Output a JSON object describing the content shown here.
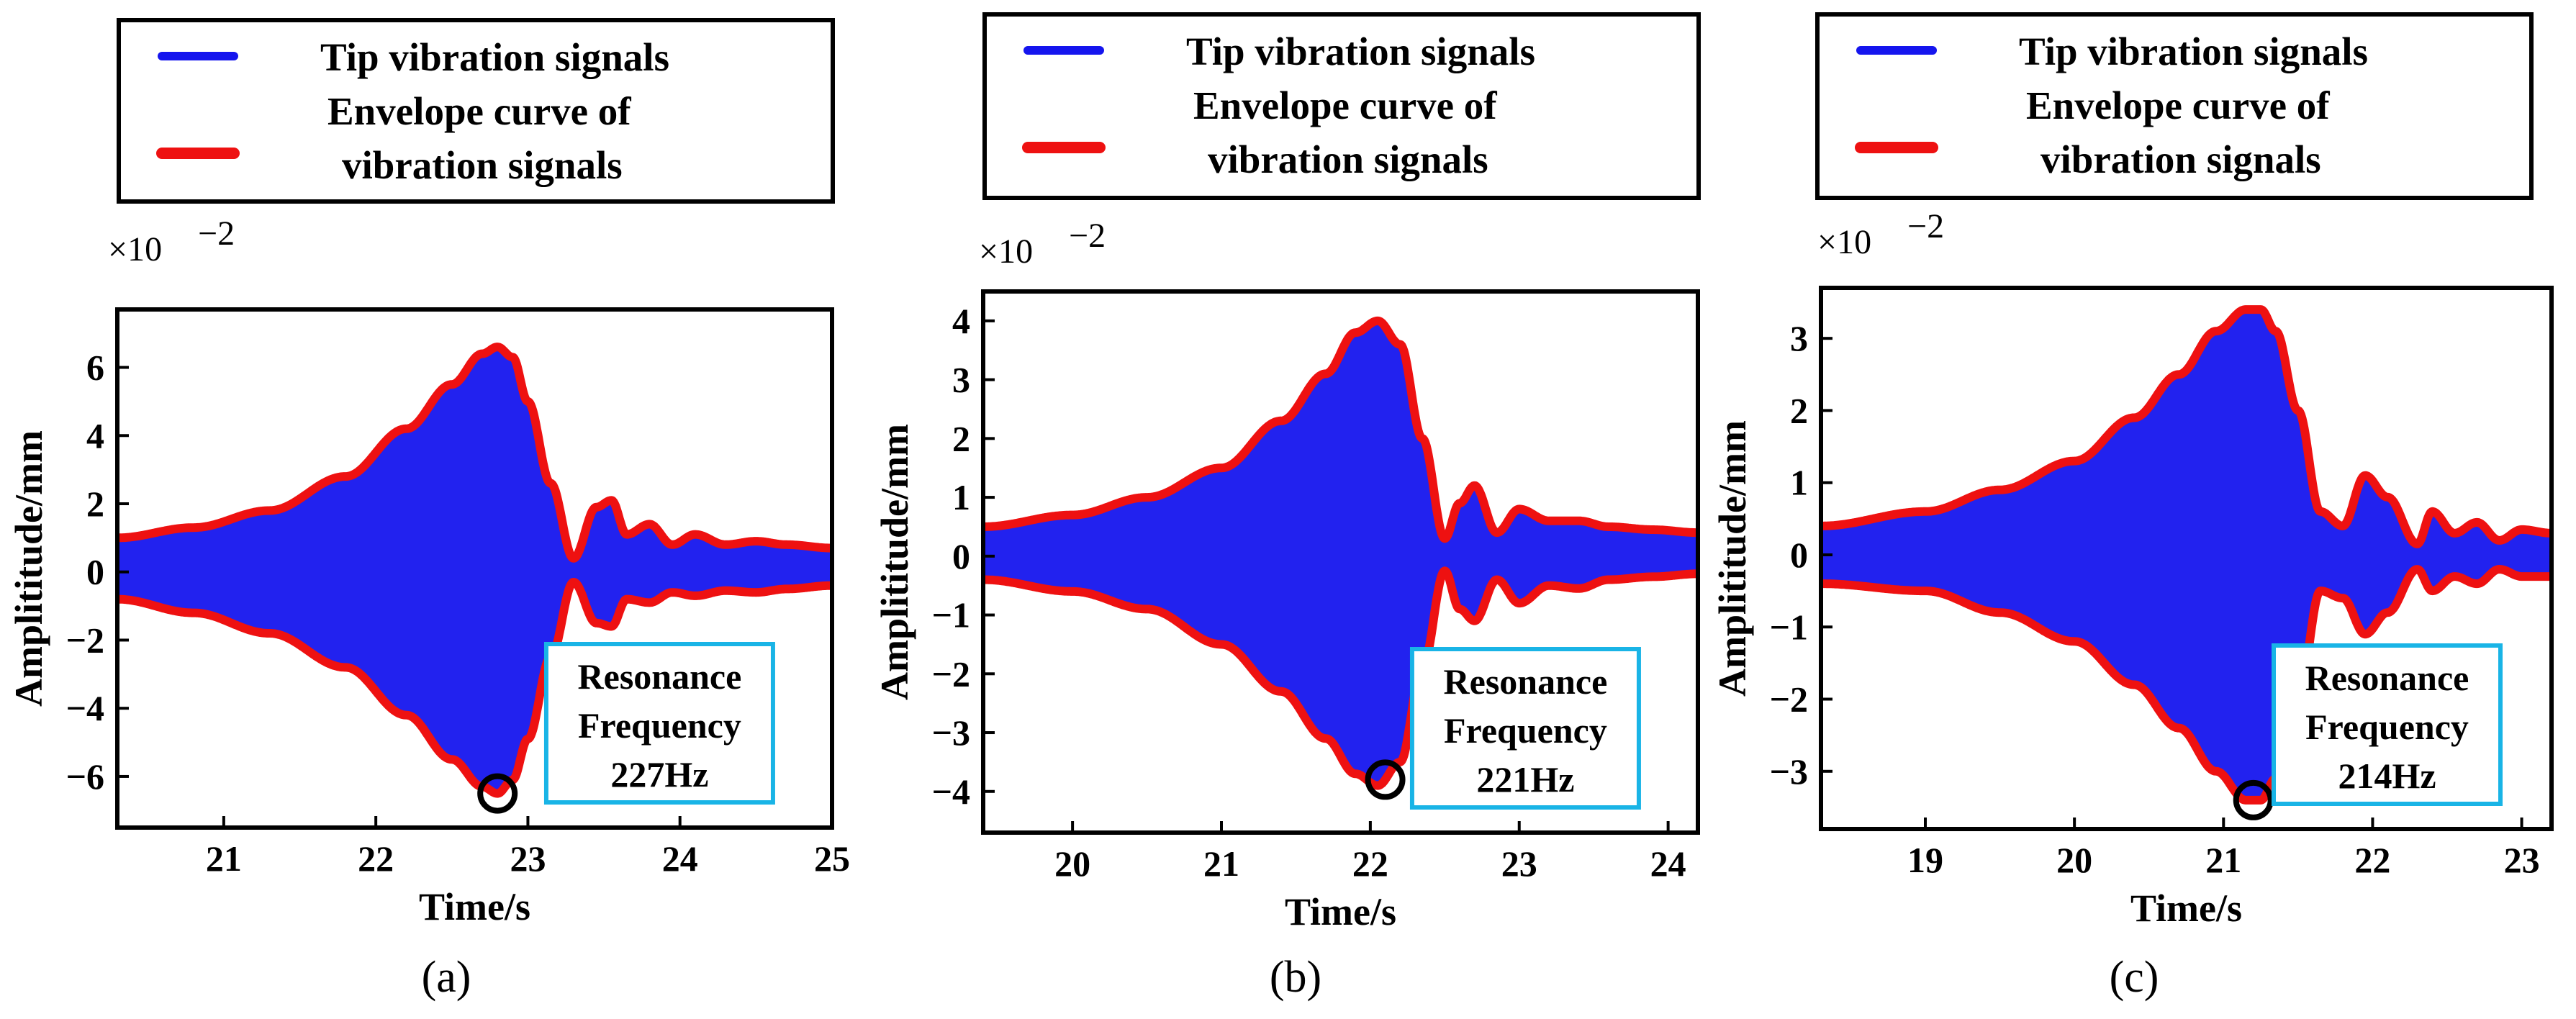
{
  "legend": {
    "signal_label": "Tip vibration signals",
    "envelope_label_line1": "Envelope curve of",
    "envelope_label_line2": "vibration signals",
    "signal_color": "#1515ee",
    "envelope_color": "#ee1111"
  },
  "annotation_box_color": "#19b4e6",
  "chart_data": [
    {
      "panel": "(a)",
      "type": "line",
      "xlabel": "Time/s",
      "ylabel": "Amplititude/mm",
      "y_multiplier": "×10",
      "y_exponent": "−2",
      "xlim": [
        20.3,
        25.0
      ],
      "ylim": [
        -7.5,
        7.7
      ],
      "xticks": [
        21,
        22,
        23,
        24,
        25
      ],
      "yticks": [
        -6,
        -4,
        -2,
        0,
        2,
        4,
        6
      ],
      "resonance_time": 22.8,
      "resonance_label": [
        "Resonance",
        "Frequency",
        "227Hz"
      ],
      "envelope": {
        "t": [
          20.3,
          20.8,
          21.3,
          21.8,
          22.2,
          22.5,
          22.7,
          22.8,
          22.9,
          23.0,
          23.15,
          23.3,
          23.45,
          23.55,
          23.65,
          23.8,
          23.95,
          24.1,
          24.3,
          24.5,
          24.7,
          25.0
        ],
        "upper": [
          1.0,
          1.3,
          1.8,
          2.8,
          4.2,
          5.5,
          6.4,
          6.6,
          6.3,
          5.0,
          2.6,
          0.4,
          1.9,
          2.1,
          1.1,
          1.4,
          0.8,
          1.1,
          0.8,
          0.9,
          0.8,
          0.7
        ],
        "lower": [
          -0.8,
          -1.2,
          -1.8,
          -2.8,
          -4.2,
          -5.5,
          -6.3,
          -6.5,
          -6.1,
          -4.9,
          -2.5,
          -0.3,
          -1.5,
          -1.6,
          -0.8,
          -0.9,
          -0.6,
          -0.7,
          -0.55,
          -0.6,
          -0.5,
          -0.4
        ]
      }
    },
    {
      "panel": "(b)",
      "type": "line",
      "xlabel": "Time/s",
      "ylabel": "Amplititude/mm",
      "y_multiplier": "×10",
      "y_exponent": "−2",
      "xlim": [
        19.4,
        24.2
      ],
      "ylim": [
        -4.7,
        4.5
      ],
      "xticks": [
        20,
        21,
        22,
        23,
        24
      ],
      "yticks": [
        -4,
        -3,
        -2,
        -1,
        0,
        1,
        2,
        3,
        4
      ],
      "resonance_time": 22.1,
      "resonance_label": [
        "Resonance",
        "Frequency",
        "221Hz"
      ],
      "envelope": {
        "t": [
          19.4,
          20.0,
          20.5,
          21.0,
          21.4,
          21.7,
          21.9,
          22.05,
          22.2,
          22.35,
          22.5,
          22.6,
          22.7,
          22.85,
          23.0,
          23.2,
          23.4,
          23.6,
          23.9,
          24.2
        ],
        "upper": [
          0.5,
          0.7,
          1.0,
          1.5,
          2.3,
          3.1,
          3.8,
          4.0,
          3.6,
          2.0,
          0.3,
          0.9,
          1.2,
          0.4,
          0.8,
          0.6,
          0.6,
          0.5,
          0.45,
          0.4
        ],
        "lower": [
          -0.4,
          -0.6,
          -0.9,
          -1.5,
          -2.3,
          -3.1,
          -3.7,
          -3.9,
          -3.5,
          -1.9,
          -0.25,
          -0.9,
          -1.1,
          -0.4,
          -0.8,
          -0.5,
          -0.55,
          -0.4,
          -0.35,
          -0.3
        ]
      }
    },
    {
      "panel": "(c)",
      "type": "line",
      "xlabel": "Time/s",
      "ylabel": "Amplititude/mm",
      "y_multiplier": "×10",
      "y_exponent": "−2",
      "xlim": [
        18.3,
        23.2
      ],
      "ylim": [
        -3.8,
        3.7
      ],
      "xticks": [
        19,
        20,
        21,
        22,
        23
      ],
      "yticks": [
        -3,
        -2,
        -1,
        0,
        1,
        2,
        3
      ],
      "resonance_time": 21.2,
      "resonance_label": [
        "Resonance",
        "Frequency",
        "214Hz"
      ],
      "envelope": {
        "t": [
          18.3,
          19.0,
          19.5,
          20.0,
          20.4,
          20.7,
          20.95,
          21.15,
          21.25,
          21.35,
          21.5,
          21.65,
          21.8,
          21.95,
          22.1,
          22.3,
          22.4,
          22.55,
          22.7,
          22.85,
          23.0,
          23.2
        ],
        "upper": [
          0.4,
          0.6,
          0.9,
          1.3,
          1.9,
          2.5,
          3.1,
          3.4,
          3.4,
          3.1,
          2.0,
          0.6,
          0.4,
          1.1,
          0.8,
          0.15,
          0.6,
          0.3,
          0.45,
          0.2,
          0.35,
          0.3
        ],
        "lower": [
          -0.4,
          -0.5,
          -0.8,
          -1.2,
          -1.8,
          -2.4,
          -3.0,
          -3.4,
          -3.4,
          -3.1,
          -2.0,
          -0.5,
          -0.6,
          -1.1,
          -0.8,
          -0.2,
          -0.5,
          -0.3,
          -0.4,
          -0.2,
          -0.3,
          -0.3
        ]
      }
    }
  ]
}
